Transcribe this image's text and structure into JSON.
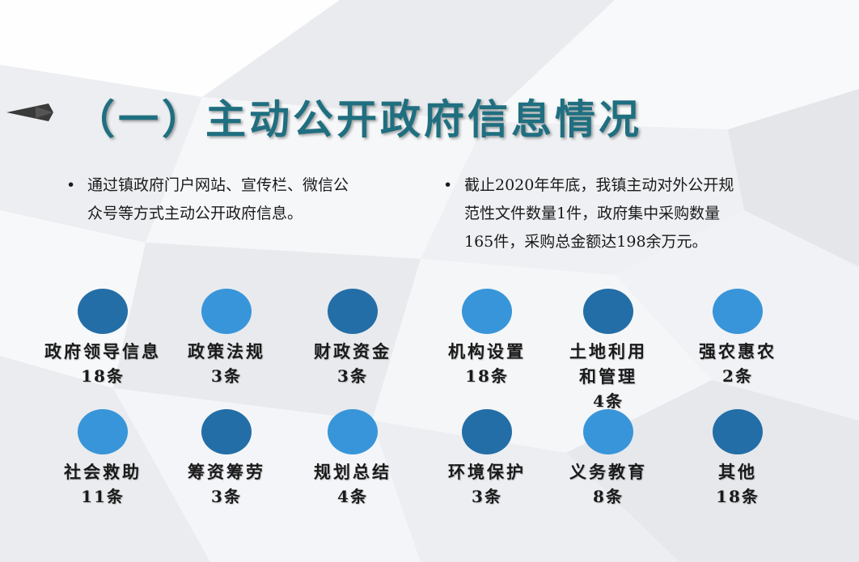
{
  "slide": {
    "title": "（一）主动公开政府信息情况",
    "bullets": [
      {
        "marker": "•",
        "lines": [
          "通过镇政府门户网站、宣传栏、微信公",
          "众号等方式主动公开政府信息。"
        ]
      },
      {
        "marker": "•",
        "lines": [
          "截止2020年年底，我镇主动对外公开规",
          "范性文件数量1件，政府集中采购数量",
          "165件，采购总金额达198余万元。"
        ]
      }
    ],
    "items": [
      {
        "label": "政府领导信息",
        "count": "18条",
        "tone": "dark"
      },
      {
        "label": "政策法规",
        "count": "3条",
        "tone": "light"
      },
      {
        "label": "财政资金",
        "count": "3条",
        "tone": "dark"
      },
      {
        "label": "机构设置",
        "count": "18条",
        "tone": "light"
      },
      {
        "label_lines": [
          "土地利用",
          "和管理"
        ],
        "count": "4条",
        "tone": "dark"
      },
      {
        "label": "强农惠农",
        "count": "2条",
        "tone": "light"
      },
      {
        "label": "社会救助",
        "count": "11条",
        "tone": "light"
      },
      {
        "label": "筹资筹劳",
        "count": "3条",
        "tone": "dark"
      },
      {
        "label": "规划总结",
        "count": "4条",
        "tone": "light"
      },
      {
        "label": "环境保护",
        "count": "3条",
        "tone": "dark"
      },
      {
        "label": "义务教育",
        "count": "8条",
        "tone": "light"
      },
      {
        "label": "其他",
        "count": "18条",
        "tone": "dark"
      }
    ]
  },
  "colors": {
    "title": "#1f6f80",
    "circle_dark": "#236ea6",
    "circle_light": "#3895da",
    "text": "#1a1a1a"
  }
}
